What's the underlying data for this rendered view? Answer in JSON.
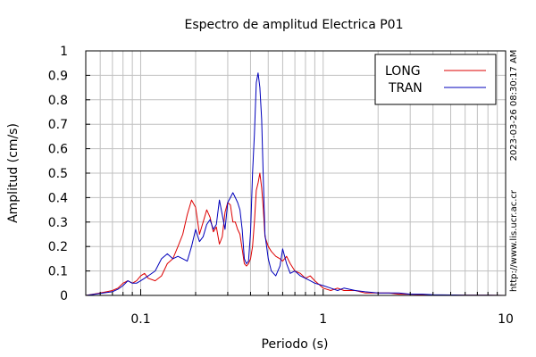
{
  "chart_data": {
    "type": "line",
    "title": "Espectro de amplitud Electrica P01",
    "xlabel": "Periodo (s)",
    "ylabel": "Amplitud (cm/s)",
    "x_scale": "log",
    "xlim": [
      0.05,
      10
    ],
    "ylim": [
      0,
      1
    ],
    "x_ticks": [
      0.1,
      1,
      10
    ],
    "x_tick_labels": [
      "0.1",
      "1",
      "10"
    ],
    "y_ticks": [
      0,
      0.1,
      0.2,
      0.3,
      0.4,
      0.5,
      0.6,
      0.7,
      0.8,
      0.9,
      1
    ],
    "y_tick_labels": [
      "0",
      "0.1",
      "0.2",
      "0.3",
      "0.4",
      "0.5",
      "0.6",
      "0.7",
      "0.8",
      "0.9",
      "1"
    ],
    "grid": true,
    "legend_position": "top-right",
    "series": [
      {
        "name": "LONG",
        "color": "#dd0000",
        "x": [
          0.05,
          0.055,
          0.06,
          0.065,
          0.07,
          0.075,
          0.08,
          0.085,
          0.09,
          0.095,
          0.1,
          0.105,
          0.11,
          0.12,
          0.13,
          0.14,
          0.15,
          0.16,
          0.17,
          0.18,
          0.19,
          0.2,
          0.21,
          0.22,
          0.23,
          0.24,
          0.25,
          0.26,
          0.27,
          0.28,
          0.29,
          0.3,
          0.31,
          0.32,
          0.33,
          0.34,
          0.35,
          0.36,
          0.37,
          0.38,
          0.39,
          0.4,
          0.41,
          0.42,
          0.43,
          0.44,
          0.45,
          0.46,
          0.47,
          0.48,
          0.5,
          0.52,
          0.55,
          0.58,
          0.6,
          0.63,
          0.66,
          0.7,
          0.75,
          0.8,
          0.85,
          0.9,
          1.0,
          1.1,
          1.2,
          1.3,
          1.5,
          1.7,
          2.0,
          2.3,
          2.6,
          3.0,
          3.5,
          4.0,
          5.0,
          6.0,
          8.0,
          10.0
        ],
        "y": [
          0,
          0.005,
          0.01,
          0.015,
          0.02,
          0.03,
          0.05,
          0.06,
          0.05,
          0.06,
          0.08,
          0.09,
          0.07,
          0.06,
          0.08,
          0.13,
          0.15,
          0.2,
          0.25,
          0.33,
          0.39,
          0.36,
          0.25,
          0.3,
          0.35,
          0.32,
          0.26,
          0.28,
          0.21,
          0.24,
          0.34,
          0.38,
          0.37,
          0.3,
          0.3,
          0.27,
          0.25,
          0.19,
          0.13,
          0.12,
          0.13,
          0.15,
          0.2,
          0.3,
          0.43,
          0.46,
          0.5,
          0.44,
          0.35,
          0.24,
          0.2,
          0.18,
          0.16,
          0.15,
          0.14,
          0.16,
          0.13,
          0.1,
          0.09,
          0.07,
          0.08,
          0.06,
          0.03,
          0.02,
          0.03,
          0.02,
          0.02,
          0.01,
          0.01,
          0.01,
          0.005,
          0.005,
          0.003,
          0.002,
          0.001,
          0.001,
          0.001,
          0
        ]
      },
      {
        "name": "TRAN",
        "color": "#0000bb",
        "x": [
          0.05,
          0.055,
          0.06,
          0.065,
          0.07,
          0.075,
          0.08,
          0.085,
          0.09,
          0.095,
          0.1,
          0.105,
          0.11,
          0.12,
          0.13,
          0.14,
          0.15,
          0.16,
          0.17,
          0.18,
          0.19,
          0.2,
          0.21,
          0.22,
          0.23,
          0.24,
          0.25,
          0.26,
          0.27,
          0.28,
          0.29,
          0.3,
          0.31,
          0.32,
          0.33,
          0.34,
          0.35,
          0.36,
          0.37,
          0.38,
          0.39,
          0.4,
          0.41,
          0.42,
          0.43,
          0.44,
          0.45,
          0.46,
          0.47,
          0.48,
          0.5,
          0.52,
          0.55,
          0.58,
          0.6,
          0.63,
          0.66,
          0.7,
          0.75,
          0.8,
          0.85,
          0.9,
          1.0,
          1.1,
          1.2,
          1.3,
          1.5,
          1.7,
          2.0,
          2.3,
          2.6,
          3.0,
          3.5,
          4.0,
          5.0,
          6.0,
          8.0,
          10.0
        ],
        "y": [
          0,
          0.004,
          0.008,
          0.012,
          0.015,
          0.025,
          0.04,
          0.06,
          0.05,
          0.05,
          0.06,
          0.07,
          0.08,
          0.1,
          0.15,
          0.17,
          0.15,
          0.16,
          0.15,
          0.14,
          0.2,
          0.27,
          0.22,
          0.24,
          0.29,
          0.31,
          0.27,
          0.29,
          0.39,
          0.33,
          0.27,
          0.38,
          0.4,
          0.42,
          0.4,
          0.38,
          0.35,
          0.27,
          0.15,
          0.13,
          0.14,
          0.26,
          0.5,
          0.66,
          0.87,
          0.91,
          0.85,
          0.72,
          0.47,
          0.25,
          0.15,
          0.1,
          0.08,
          0.12,
          0.19,
          0.13,
          0.09,
          0.1,
          0.08,
          0.07,
          0.06,
          0.05,
          0.04,
          0.03,
          0.02,
          0.03,
          0.02,
          0.015,
          0.01,
          0.01,
          0.01,
          0.005,
          0.005,
          0.003,
          0.002,
          0.001,
          0.001,
          0
        ]
      }
    ],
    "side_text": {
      "timestamp": "2023-03-26 08:30:17 AM",
      "url": "http://www.lis.ucr.ac.cr"
    }
  }
}
